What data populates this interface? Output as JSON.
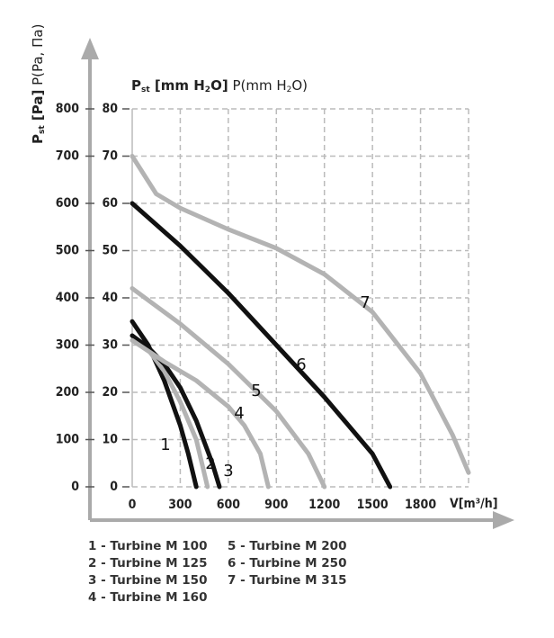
{
  "chart_data": {
    "type": "line",
    "y_label": [
      "P",
      "st",
      " [Pa]",
      " P(Pa, Па)"
    ],
    "y2_label": [
      "P",
      "st",
      " [mm H",
      "2",
      "O]",
      " P(mm H",
      "2",
      "O)"
    ],
    "x_label": "V[m³/h]",
    "xlim": [
      0,
      2100
    ],
    "xticks": [
      0,
      300,
      600,
      900,
      1200,
      1500,
      1800
    ],
    "ylim": [
      0,
      800
    ],
    "yticks": [
      0,
      100,
      200,
      300,
      400,
      500,
      600,
      700,
      800
    ],
    "y2lim": [
      0,
      80
    ],
    "y2ticks": [
      0,
      10,
      20,
      30,
      40,
      50,
      60,
      70,
      80
    ],
    "grid": true,
    "series": [
      {
        "name": "1 - Turbine M 100",
        "curve_label": "1",
        "color": "#111111",
        "x": [
          0,
          100,
          200,
          300,
          350,
          400
        ],
        "values": [
          350,
          300,
          225,
          130,
          70,
          0
        ]
      },
      {
        "name": "2 - Turbine M 125",
        "curve_label": "2",
        "color": "#b3b3b3",
        "x": [
          0,
          100,
          200,
          300,
          400,
          470
        ],
        "values": [
          320,
          290,
          245,
          180,
          100,
          0
        ]
      },
      {
        "name": "3 - Turbine M 150",
        "curve_label": "3",
        "color": "#111111",
        "x": [
          0,
          100,
          200,
          300,
          400,
          500,
          545
        ],
        "values": [
          320,
          295,
          260,
          210,
          140,
          50,
          0
        ]
      },
      {
        "name": "4 - Turbine M 160",
        "curve_label": "4",
        "color": "#b3b3b3",
        "x": [
          0,
          200,
          400,
          600,
          700,
          800,
          850
        ],
        "values": [
          310,
          265,
          225,
          170,
          130,
          70,
          0
        ]
      },
      {
        "name": "5 - Turbine M 200",
        "curve_label": "5",
        "color": "#b3b3b3",
        "x": [
          0,
          300,
          600,
          900,
          1100,
          1200
        ],
        "values": [
          420,
          345,
          260,
          160,
          70,
          0
        ]
      },
      {
        "name": "6 - Turbine M 250",
        "curve_label": "6",
        "color": "#111111",
        "x": [
          0,
          300,
          600,
          900,
          1200,
          1500,
          1610
        ],
        "values": [
          600,
          510,
          410,
          300,
          190,
          70,
          0
        ]
      },
      {
        "name": "7 - Turbine M 315",
        "curve_label": "7",
        "color": "#b3b3b3",
        "x": [
          0,
          150,
          300,
          600,
          900,
          1200,
          1500,
          1800,
          2000,
          2100
        ],
        "values": [
          700,
          620,
          590,
          545,
          505,
          450,
          370,
          240,
          110,
          30
        ]
      }
    ]
  }
}
